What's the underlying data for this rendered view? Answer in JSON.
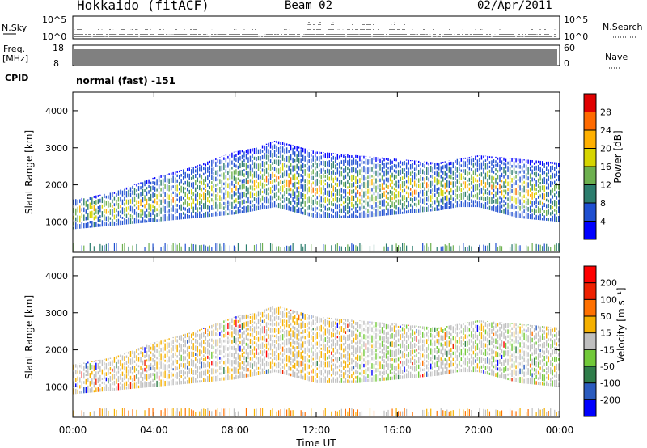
{
  "header": {
    "station": "Hokkaido (fitACF)",
    "beam": "Beam 02",
    "date": "02/Apr/2011"
  },
  "status_panels": {
    "nsky_label": "N.Sky",
    "nsky_ticks": [
      "10^5",
      "10^0"
    ],
    "nsearch_label": "N.Search",
    "freq_label": "Freq.",
    "freq_unit": "[MHz]",
    "freq_ticks": [
      "18",
      "8"
    ],
    "nave_label": "Nave",
    "nave_ticks": [
      "60",
      "0"
    ],
    "cpid_label": "CPID",
    "cpid_value": "normal (fast) -151"
  },
  "chart_data": [
    {
      "type": "heatmap",
      "name": "power",
      "ylabel": "Slant Range [km]",
      "yticks": [
        "4000",
        "3000",
        "2000",
        "1000"
      ],
      "ylim": [
        180,
        4500
      ],
      "colorbar": {
        "label": "Power [dB]",
        "ticks": [
          "28",
          "24",
          "20",
          "16",
          "12",
          "8",
          "4"
        ],
        "colors": [
          "#0000ff",
          "#1f4fd0",
          "#2c7d6d",
          "#6db04f",
          "#d6d400",
          "#ffb000",
          "#ff6a00",
          "#e00000"
        ]
      },
      "echo_band_km": {
        "time_h": [
          0,
          2,
          4,
          6,
          8,
          9,
          10,
          12,
          14,
          16,
          18,
          19,
          20,
          22,
          24
        ],
        "lower": [
          800,
          900,
          1000,
          1100,
          1200,
          1300,
          1400,
          1100,
          1100,
          1200,
          1300,
          1400,
          1400,
          1100,
          1000
        ],
        "upper": [
          1600,
          1800,
          2200,
          2500,
          2900,
          3000,
          3200,
          2900,
          2800,
          2700,
          2600,
          2700,
          2800,
          2700,
          2600
        ]
      }
    },
    {
      "type": "heatmap",
      "name": "velocity",
      "ylabel": "Slant Range [km]",
      "yticks": [
        "4000",
        "3000",
        "2000",
        "1000"
      ],
      "ylim": [
        180,
        4500
      ],
      "xlabel": "Time UT",
      "xticks": [
        "00:00",
        "04:00",
        "08:00",
        "12:00",
        "16:00",
        "20:00",
        "00:00"
      ],
      "xlim": [
        0,
        24
      ],
      "colorbar": {
        "label": "Velocity [m s⁻¹]",
        "ticks": [
          "200",
          "100",
          "50",
          "15",
          "-15",
          "-50",
          "-100",
          "-200"
        ],
        "colors": [
          "#0000ff",
          "#2b5bbf",
          "#2f7d4a",
          "#72c93a",
          "#bfbfbf",
          "#f5b000",
          "#ff7000",
          "#ee2000",
          "#ff0000"
        ]
      }
    }
  ]
}
